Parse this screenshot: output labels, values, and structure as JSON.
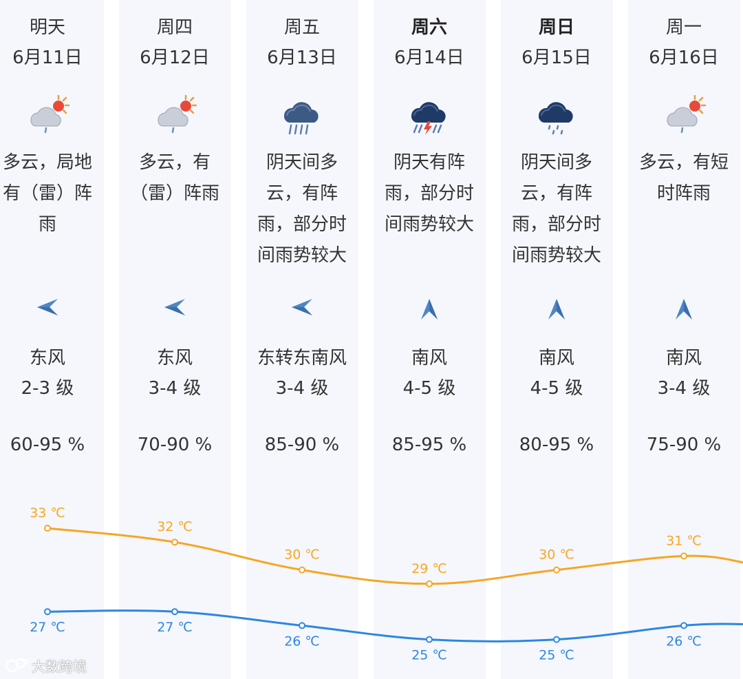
{
  "days": [
    {
      "day": "明天",
      "date": "6月11日",
      "weather_icon": "partly-cloudy-rain-icon",
      "desc": [
        "多云，局地",
        "有（雷）阵",
        "雨"
      ],
      "wind_dir_icon": "wind-arrow-left-icon",
      "wind": "东风",
      "wind_level": "2-3 级",
      "humidity": "60-95 %",
      "bold": false
    },
    {
      "day": "周四",
      "date": "6月12日",
      "weather_icon": "partly-cloudy-rain-icon",
      "desc": [
        "多云，有",
        "（雷）阵雨"
      ],
      "wind_dir_icon": "wind-arrow-left-icon",
      "wind": "东风",
      "wind_level": "3-4 级",
      "humidity": "70-90 %",
      "bold": false
    },
    {
      "day": "周五",
      "date": "6月13日",
      "weather_icon": "cloudy-heavy-rain-icon",
      "desc": [
        "阴天间多",
        "云，有阵",
        "雨，部分时",
        "间雨势较大"
      ],
      "wind_dir_icon": "wind-arrow-left-icon",
      "wind": "东转东南风",
      "wind_level": "3-4 级",
      "humidity": "85-90 %",
      "bold": false
    },
    {
      "day": "周六",
      "date": "6月14日",
      "weather_icon": "thunderstorm-icon",
      "desc": [
        "阴天有阵",
        "雨，部分时",
        "间雨势较大"
      ],
      "wind_dir_icon": "wind-arrow-up-icon",
      "wind": "南风",
      "wind_level": "4-5 级",
      "humidity": "85-95 %",
      "bold": true
    },
    {
      "day": "周日",
      "date": "6月15日",
      "weather_icon": "cloudy-rain-icon",
      "desc": [
        "阴天间多",
        "云，有阵",
        "雨，部分时",
        "间雨势较大"
      ],
      "wind_dir_icon": "wind-arrow-up-icon",
      "wind": "南风",
      "wind_level": "4-5 级",
      "humidity": "80-95 %",
      "bold": true
    },
    {
      "day": "周一",
      "date": "6月16日",
      "weather_icon": "partly-cloudy-rain-icon",
      "desc": [
        "多云，有短",
        "时阵雨"
      ],
      "wind_dir_icon": "wind-arrow-up-icon",
      "wind": "南风",
      "wind_level": "3-4 级",
      "humidity": "75-90 %",
      "bold": false
    }
  ],
  "chart_data": {
    "type": "line",
    "categories": [
      "6月11日",
      "6月12日",
      "6月13日",
      "6月14日",
      "6月15日",
      "6月16日"
    ],
    "series": [
      {
        "values": [
          33,
          32,
          30,
          29,
          30,
          31
        ],
        "labels": [
          "33 ℃",
          "32 ℃",
          "30 ℃",
          "29 ℃",
          "30 ℃",
          "31 ℃"
        ],
        "color": "#f5a623"
      },
      {
        "values": [
          27,
          27,
          26,
          25,
          25,
          26
        ],
        "labels": [
          "27 ℃",
          "27 ℃",
          "26 ℃",
          "25 ℃",
          "25 ℃",
          "26 ℃"
        ],
        "color": "#2d86e0"
      }
    ],
    "unit": "℃"
  },
  "watermark": {
    "text": "大数跨境"
  },
  "colors": {
    "high": "#f5a623",
    "low": "#2d86e0",
    "column_bg": "#f5f7fc",
    "text": "#333333"
  }
}
